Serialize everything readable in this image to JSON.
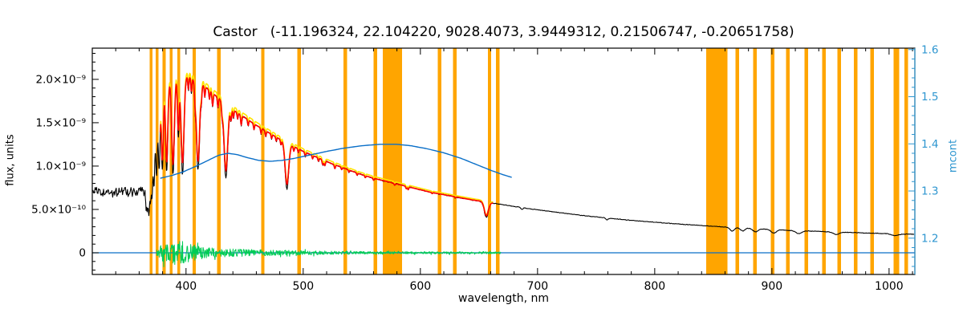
{
  "chart_data": {
    "type": "line",
    "title": "Castor   (-11.196324, 22.104220, 9028.4073, 3.9449312, 0.21506747, -0.20651758)",
    "xlabel": "wavelength, nm",
    "ylabel_left": "flux, units",
    "ylabel_right": "mcont",
    "x_range_nm": [
      320,
      1022
    ],
    "y_left_range_1e9": [
      -0.25,
      2.36
    ],
    "y_right_range": [
      1.123,
      1.603
    ],
    "x_major_ticks": [
      400,
      500,
      600,
      700,
      800,
      900,
      1000
    ],
    "x_minor_step_nm": 20,
    "y_left_ticks": [
      {
        "value_1e9": 0.0,
        "label": "0"
      },
      {
        "value_1e9": 0.5,
        "label": "5.0×10⁻¹⁰"
      },
      {
        "value_1e9": 1.0,
        "label": "1.0×10⁻⁹"
      },
      {
        "value_1e9": 1.5,
        "label": "1.5×10⁻⁹"
      },
      {
        "value_1e9": 2.0,
        "label": "2.0×10⁻⁹"
      }
    ],
    "y_left_minor_step_1e9": 0.1,
    "y_right_ticks": [
      {
        "value": 1.2,
        "label": "1.2"
      },
      {
        "value": 1.3,
        "label": "1.3"
      },
      {
        "value": 1.4,
        "label": "1.4"
      },
      {
        "value": 1.5,
        "label": "1.5"
      },
      {
        "value": 1.6,
        "label": "1.6"
      }
    ],
    "y_right_minor_step": 0.02,
    "colors": {
      "observed": "#000000",
      "model": "#FF0000",
      "model_alt": "#FFE400",
      "residual": "#00CC55",
      "curve_blue": "#0A6FC8",
      "axis_blue": "#2E96D0",
      "mask": "#FFA500",
      "frame": "#000000"
    },
    "mask_bands_nm": [
      [
        369,
        371.5
      ],
      [
        374,
        376.5
      ],
      [
        380,
        382.5
      ],
      [
        386,
        388.5
      ],
      [
        392.5,
        395
      ],
      [
        405.5,
        408.5
      ],
      [
        426.5,
        429.5
      ],
      [
        464,
        467
      ],
      [
        495,
        498
      ],
      [
        534.5,
        537.5
      ],
      [
        560,
        563
      ],
      [
        568,
        584.5
      ],
      [
        615,
        618
      ],
      [
        628,
        631
      ],
      [
        657.5,
        660.5
      ],
      [
        664.5,
        667.5
      ],
      [
        844,
        862
      ],
      [
        869,
        872
      ],
      [
        884,
        887
      ],
      [
        899,
        902
      ],
      [
        912,
        915
      ],
      [
        928,
        931
      ],
      [
        943,
        946
      ],
      [
        956,
        959
      ],
      [
        970,
        973
      ],
      [
        984,
        987
      ],
      [
        1004,
        1008.5
      ],
      [
        1013,
        1016
      ]
    ],
    "series": {
      "observed": {
        "color_key": "observed",
        "range_nm": [
          320,
          1022
        ],
        "continuum_1e9": [
          [
            320,
            0.7
          ],
          [
            335,
            0.695
          ],
          [
            350,
            0.7
          ],
          [
            362,
            0.705
          ],
          [
            368,
            0.72
          ],
          [
            371,
            1.05
          ],
          [
            374,
            1.55
          ],
          [
            378,
            1.85
          ],
          [
            384,
            1.97
          ],
          [
            390,
            2.02
          ],
          [
            396,
            2.04
          ],
          [
            402,
            2.03
          ],
          [
            408,
            1.99
          ],
          [
            415,
            1.93
          ],
          [
            422,
            1.85
          ],
          [
            430,
            1.76
          ],
          [
            440,
            1.65
          ],
          [
            450,
            1.56
          ],
          [
            460,
            1.47
          ],
          [
            470,
            1.39
          ],
          [
            480,
            1.31
          ],
          [
            490,
            1.24
          ],
          [
            500,
            1.17
          ],
          [
            512,
            1.1
          ],
          [
            524,
            1.03
          ],
          [
            536,
            0.97
          ],
          [
            548,
            0.91
          ],
          [
            560,
            0.86
          ],
          [
            572,
            0.82
          ],
          [
            584,
            0.78
          ],
          [
            596,
            0.74
          ],
          [
            608,
            0.7
          ],
          [
            620,
            0.67
          ],
          [
            632,
            0.64
          ],
          [
            644,
            0.61
          ],
          [
            656,
            0.585
          ],
          [
            668,
            0.56
          ],
          [
            680,
            0.535
          ],
          [
            695,
            0.505
          ],
          [
            710,
            0.478
          ],
          [
            725,
            0.452
          ],
          [
            740,
            0.428
          ],
          [
            760,
            0.4
          ],
          [
            780,
            0.374
          ],
          [
            800,
            0.352
          ],
          [
            820,
            0.332
          ],
          [
            840,
            0.314
          ],
          [
            860,
            0.297
          ],
          [
            880,
            0.282
          ],
          [
            900,
            0.268
          ],
          [
            920,
            0.256
          ],
          [
            940,
            0.246
          ],
          [
            960,
            0.237
          ],
          [
            980,
            0.228
          ],
          [
            1000,
            0.22
          ],
          [
            1022,
            0.212
          ]
        ],
        "absorption_lines": [
          [
            366.0,
            0.3,
            0.7
          ],
          [
            367.2,
            0.32,
            0.7
          ],
          [
            368.3,
            0.34,
            0.7
          ],
          [
            369.6,
            0.36,
            0.8
          ],
          [
            371.0,
            0.38,
            0.8
          ],
          [
            372.7,
            0.41,
            0.9
          ],
          [
            374.8,
            0.44,
            1.0
          ],
          [
            377.1,
            0.46,
            1.1
          ],
          [
            379.8,
            0.49,
            1.2
          ],
          [
            383.5,
            0.52,
            1.4
          ],
          [
            388.9,
            0.55,
            1.6
          ],
          [
            393.4,
            0.34,
            1.0
          ],
          [
            397.0,
            0.55,
            1.8
          ],
          [
            410.2,
            0.52,
            2.0
          ],
          [
            434.0,
            0.5,
            2.2
          ],
          [
            486.1,
            0.42,
            2.2
          ],
          [
            656.3,
            0.3,
            2.4
          ],
          [
            402.0,
            0.08,
            0.6
          ],
          [
            404.6,
            0.09,
            0.6
          ],
          [
            407.8,
            0.08,
            0.6
          ],
          [
            413.1,
            0.07,
            0.6
          ],
          [
            416.0,
            0.07,
            0.6
          ],
          [
            420.0,
            0.06,
            0.6
          ],
          [
            422.7,
            0.09,
            0.7
          ],
          [
            427.2,
            0.07,
            0.6
          ],
          [
            430.8,
            0.08,
            0.7
          ],
          [
            438.4,
            0.09,
            0.8
          ],
          [
            440.5,
            0.06,
            0.6
          ],
          [
            444.0,
            0.05,
            0.6
          ],
          [
            447.1,
            0.08,
            0.7
          ],
          [
            453.0,
            0.05,
            0.6
          ],
          [
            458.0,
            0.05,
            0.6
          ],
          [
            464.0,
            0.05,
            0.6
          ],
          [
            468.0,
            0.05,
            0.6
          ],
          [
            473.0,
            0.04,
            0.6
          ],
          [
            477.0,
            0.04,
            0.6
          ],
          [
            481.0,
            0.05,
            0.6
          ],
          [
            492.0,
            0.05,
            0.7
          ],
          [
            495.8,
            0.04,
            0.6
          ],
          [
            501.8,
            0.05,
            0.7
          ],
          [
            508.0,
            0.04,
            0.6
          ],
          [
            513.0,
            0.04,
            0.6
          ],
          [
            516.7,
            0.06,
            0.8
          ],
          [
            518.4,
            0.06,
            0.8
          ],
          [
            527.0,
            0.05,
            0.7
          ],
          [
            532.8,
            0.03,
            0.6
          ],
          [
            539.0,
            0.03,
            0.6
          ],
          [
            546.0,
            0.03,
            0.6
          ],
          [
            553.0,
            0.03,
            0.6
          ],
          [
            560.0,
            0.03,
            0.6
          ],
          [
            578.0,
            0.03,
            0.6
          ],
          [
            588.0,
            0.04,
            0.7
          ],
          [
            589.6,
            0.05,
            0.7
          ],
          [
            610.0,
            0.02,
            0.6
          ],
          [
            630.0,
            0.02,
            0.6
          ],
          [
            686.7,
            0.04,
            1.2
          ],
          [
            759.4,
            0.05,
            1.5
          ],
          [
            866.0,
            0.14,
            2.5
          ],
          [
            875.0,
            0.12,
            2.5
          ],
          [
            886.0,
            0.13,
            3.0
          ],
          [
            901.5,
            0.15,
            3.0
          ],
          [
            923.0,
            0.13,
            3.5
          ],
          [
            955.0,
            0.12,
            3.5
          ],
          [
            1005.0,
            0.1,
            4.0
          ]
        ],
        "noise_1e9": [
          [
            320,
            369,
            0.065
          ],
          [
            369,
            378,
            0.025
          ],
          [
            378,
            415,
            0.03
          ],
          [
            415,
            662,
            0.009
          ],
          [
            662,
            1022.5,
            0.0045
          ]
        ]
      },
      "model": {
        "color_key": "model",
        "range_nm": [
          378,
          662
        ],
        "depth_scale": 0.9,
        "flux_scale": 1.0
      },
      "model_shifted": {
        "color_key": "model_alt",
        "range_nm": [
          378,
          662
        ],
        "depth_scale": 0.9,
        "flux_scale": 1.025
      },
      "residual": {
        "color_key": "residual",
        "range_nm": [
          375,
          669
        ],
        "zero_1e9": 0,
        "amplitude_1e9": [
          [
            375,
            0.05
          ],
          [
            380,
            0.1
          ],
          [
            386,
            0.145
          ],
          [
            392,
            0.15
          ],
          [
            398,
            0.13
          ],
          [
            404,
            0.1
          ],
          [
            410,
            0.08
          ],
          [
            418,
            0.06
          ],
          [
            428,
            0.05
          ],
          [
            440,
            0.045
          ],
          [
            455,
            0.04
          ],
          [
            470,
            0.035
          ],
          [
            485,
            0.03
          ],
          [
            500,
            0.026
          ],
          [
            515,
            0.022
          ],
          [
            530,
            0.019
          ],
          [
            550,
            0.016
          ],
          [
            575,
            0.014
          ],
          [
            600,
            0.013
          ],
          [
            630,
            0.012
          ],
          [
            669,
            0.012
          ]
        ]
      },
      "zero_line": {
        "color_key": "curve_blue",
        "flux_1e9": 0,
        "range_nm": [
          320,
          1022
        ]
      },
      "mcont": {
        "color_key": "curve_blue",
        "points": [
          [
            378,
            1.327
          ],
          [
            388,
            1.333
          ],
          [
            398,
            1.341
          ],
          [
            408,
            1.352
          ],
          [
            418,
            1.364
          ],
          [
            428,
            1.376
          ],
          [
            436,
            1.38
          ],
          [
            444,
            1.377
          ],
          [
            452,
            1.371
          ],
          [
            462,
            1.365
          ],
          [
            472,
            1.363
          ],
          [
            482,
            1.365
          ],
          [
            492,
            1.369
          ],
          [
            505,
            1.376
          ],
          [
            520,
            1.384
          ],
          [
            535,
            1.391
          ],
          [
            550,
            1.396
          ],
          [
            565,
            1.399
          ],
          [
            580,
            1.399
          ],
          [
            592,
            1.396
          ],
          [
            605,
            1.39
          ],
          [
            620,
            1.381
          ],
          [
            635,
            1.369
          ],
          [
            648,
            1.356
          ],
          [
            660,
            1.344
          ],
          [
            670,
            1.335
          ],
          [
            678,
            1.329
          ]
        ]
      }
    }
  }
}
